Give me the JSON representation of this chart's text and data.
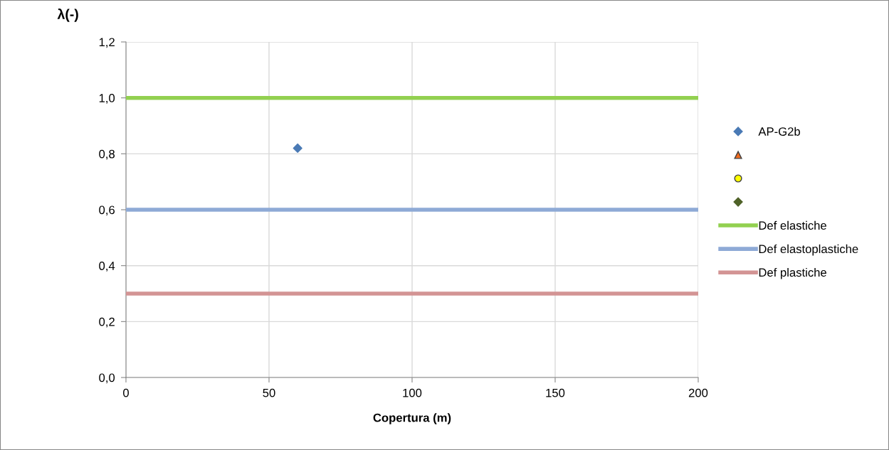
{
  "chart_data": {
    "type": "scatter",
    "xlabel": "Copertura (m)",
    "ylabel": "λ(-)",
    "xlim": [
      0,
      200
    ],
    "xticks": [
      0,
      50,
      100,
      150,
      200
    ],
    "ylim": [
      0,
      1.2
    ],
    "yticks": [
      {
        "value": 0,
        "label": "0,0"
      },
      {
        "value": 0.2,
        "label": "0,2"
      },
      {
        "value": 0.4,
        "label": "0,4"
      },
      {
        "value": 0.6,
        "label": "0,6"
      },
      {
        "value": 0.8,
        "label": "0,8"
      },
      {
        "value": 1.0,
        "label": "1,0"
      },
      {
        "value": 1.2,
        "label": "1,2"
      }
    ],
    "grid": true,
    "legend": "right",
    "series": [
      {
        "name": "AP-G2b",
        "marker": "diamond",
        "color": "#4a7ab5",
        "x": [
          60
        ],
        "values": [
          0.82
        ]
      },
      {
        "marker": "triangle",
        "color": "#f26b1d",
        "x": [
          null
        ],
        "values": [
          null
        ]
      },
      {
        "marker": "circle",
        "color": "#ffff00",
        "x": [
          null
        ],
        "values": [
          null
        ]
      },
      {
        "marker": "diamond",
        "color": "#4f6228",
        "x": [
          null
        ],
        "values": [
          null
        ]
      },
      {
        "name": "Def elastiche",
        "type": "line",
        "marker": "none",
        "color": "#92d050",
        "x": [
          0,
          200
        ],
        "values": [
          1.0,
          1.0
        ]
      },
      {
        "name": "Def elastoplastiche",
        "type": "line",
        "marker": "none",
        "color": "#8eaad6",
        "x": [
          0,
          200
        ],
        "values": [
          0.6,
          0.6
        ]
      },
      {
        "name": "Def plastiche",
        "type": "line",
        "marker": "none",
        "color": "#d39494",
        "x": [
          0,
          200
        ],
        "values": [
          0.3,
          0.3
        ]
      }
    ]
  }
}
